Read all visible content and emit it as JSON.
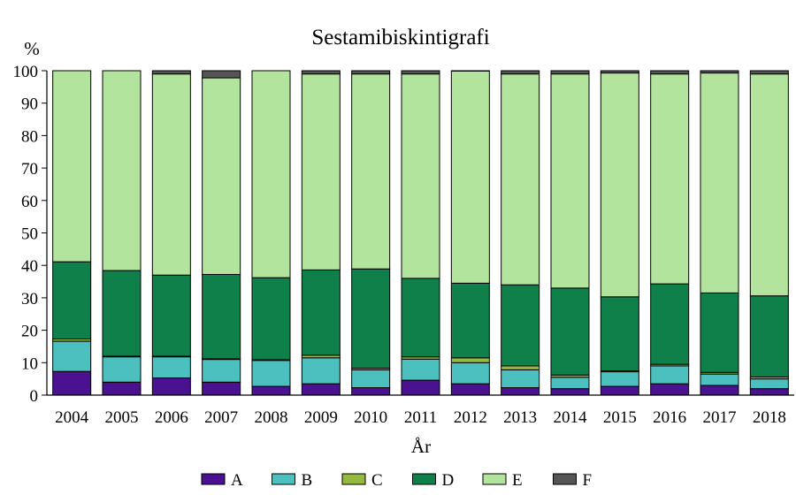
{
  "chart_data": {
    "type": "bar",
    "stacked": true,
    "title": "Sestamibiskintigrafi",
    "xlabel": "År",
    "ylabel": "%",
    "ylim": [
      0,
      100
    ],
    "yticks": [
      0,
      10,
      20,
      30,
      40,
      50,
      60,
      70,
      80,
      90,
      100
    ],
    "grid": false,
    "legend_position": "bottom",
    "categories": [
      "2004",
      "2005",
      "2006",
      "2007",
      "2008",
      "2009",
      "2010",
      "2011",
      "2012",
      "2013",
      "2014",
      "2015",
      "2016",
      "2017",
      "2018"
    ],
    "series": [
      {
        "name": "A",
        "color": "#4a1190",
        "values": [
          7.3,
          4.0,
          5.3,
          4.0,
          2.7,
          3.5,
          2.3,
          4.6,
          3.5,
          2.3,
          2.0,
          2.7,
          3.5,
          3.0,
          2.0
        ]
      },
      {
        "name": "B",
        "color": "#4cbfbf",
        "values": [
          9.3,
          7.8,
          6.5,
          7.0,
          8.0,
          8.0,
          5.5,
          6.5,
          6.5,
          5.5,
          3.5,
          4.5,
          5.5,
          3.5,
          3.0
        ]
      },
      {
        "name": "C",
        "color": "#93b93e",
        "values": [
          0.7,
          0.2,
          0.2,
          0.2,
          0.2,
          0.8,
          0.5,
          0.7,
          1.5,
          1.2,
          0.7,
          0.3,
          0.5,
          0.5,
          0.6
        ]
      },
      {
        "name": "D",
        "color": "#10804a",
        "values": [
          23.8,
          26.4,
          25.0,
          26.0,
          25.3,
          26.3,
          30.6,
          24.2,
          23.0,
          25.0,
          26.8,
          22.8,
          24.8,
          24.5,
          25.0
        ]
      },
      {
        "name": "E",
        "color": "#b3e49d",
        "values": [
          58.9,
          61.6,
          62.0,
          60.6,
          63.8,
          60.4,
          60.1,
          63.0,
          65.4,
          65.0,
          66.0,
          69.0,
          64.7,
          67.8,
          68.4
        ]
      },
      {
        "name": "F",
        "color": "#555555",
        "values": [
          0.0,
          0.0,
          1.0,
          2.2,
          0.0,
          1.0,
          1.0,
          1.0,
          0.1,
          1.0,
          1.0,
          0.7,
          1.0,
          0.7,
          1.0
        ]
      }
    ]
  }
}
